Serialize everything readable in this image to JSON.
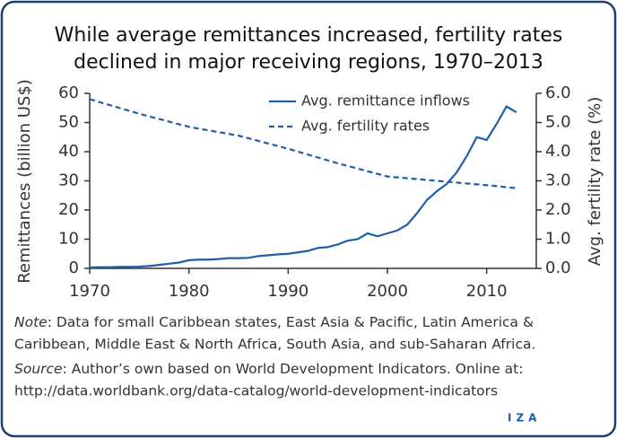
{
  "chart_data": {
    "type": "line",
    "title": [
      "While average remittances increased, fertility rates",
      "declined in major receiving regions, 1970–2013"
    ],
    "ylabel": "Remittances (billion US$)",
    "y2label": "Avg. fertility rate (%)",
    "x": [
      1970,
      1971,
      1972,
      1973,
      1974,
      1975,
      1976,
      1977,
      1978,
      1979,
      1980,
      1981,
      1982,
      1983,
      1984,
      1985,
      1986,
      1987,
      1988,
      1989,
      1990,
      1991,
      1992,
      1993,
      1994,
      1995,
      1996,
      1997,
      1998,
      1999,
      2000,
      2001,
      2002,
      2003,
      2004,
      2005,
      2006,
      2007,
      2008,
      2009,
      2010,
      2011,
      2012,
      2013
    ],
    "series": [
      {
        "name": "Avg. remittance inflows",
        "color": "#1f5ea8",
        "dash": false,
        "values": [
          0.3,
          0.4,
          0.4,
          0.5,
          0.5,
          0.6,
          0.8,
          1.2,
          1.6,
          2.0,
          2.8,
          3.0,
          3.0,
          3.2,
          3.5,
          3.5,
          3.6,
          4.2,
          4.5,
          4.8,
          5.0,
          5.5,
          6.0,
          7.0,
          7.3,
          8.2,
          9.5,
          10.0,
          12.0,
          11.0,
          12.0,
          13.0,
          15.0,
          19.0,
          23.5,
          26.5,
          29.0,
          33.0,
          38.5,
          45.0,
          44.0,
          49.5,
          55.5,
          53.5
        ]
      },
      {
        "name": "Avg. fertility rates",
        "color": "#1f5ea8",
        "dash": true,
        "axis": "y2",
        "values": [
          5.8,
          5.7,
          5.6,
          5.5,
          5.4,
          5.3,
          5.21,
          5.12,
          5.03,
          4.94,
          4.85,
          4.79,
          4.73,
          4.67,
          4.61,
          4.55,
          4.46,
          4.37,
          4.28,
          4.19,
          4.1,
          4.0,
          3.9,
          3.8,
          3.7,
          3.6,
          3.51,
          3.42,
          3.33,
          3.24,
          3.15,
          3.12,
          3.09,
          3.06,
          3.03,
          3.0,
          2.97,
          2.94,
          2.91,
          2.88,
          2.85,
          2.82,
          2.78,
          2.75
        ]
      }
    ],
    "xlim": [
      1970,
      2015
    ],
    "xticks": [
      1970,
      1980,
      1990,
      2000,
      2010
    ],
    "ylim": [
      0,
      60
    ],
    "yticks": [
      0,
      10,
      20,
      30,
      40,
      50,
      60
    ],
    "y2lim": [
      0,
      6
    ],
    "y2ticks": [
      {
        "value": 0,
        "label": "0.0"
      },
      {
        "value": 1,
        "label": "1.0"
      },
      {
        "value": 2,
        "label": "2.0"
      },
      {
        "value": 3,
        "label": "3.0"
      },
      {
        "value": 4,
        "label": "4.0"
      },
      {
        "value": 5,
        "label": "5.0"
      },
      {
        "value": 6,
        "label": "6.0"
      }
    ],
    "legend": "upper right",
    "grid": false
  },
  "notes": {
    "note_label": "Note",
    "note_lines": [
      ": Data for small Caribbean states, East Asia & Pacific, Latin America &",
      "Caribbean, Middle East & North Africa, South Asia, and sub-Saharan Africa."
    ],
    "source_label": "Source",
    "source_lines": [
      ": Author’s own based on World Development Indicators. Online at:",
      "http://data.worldbank.org/data-catalog/world-development-indicators"
    ]
  },
  "logo": "IZA"
}
